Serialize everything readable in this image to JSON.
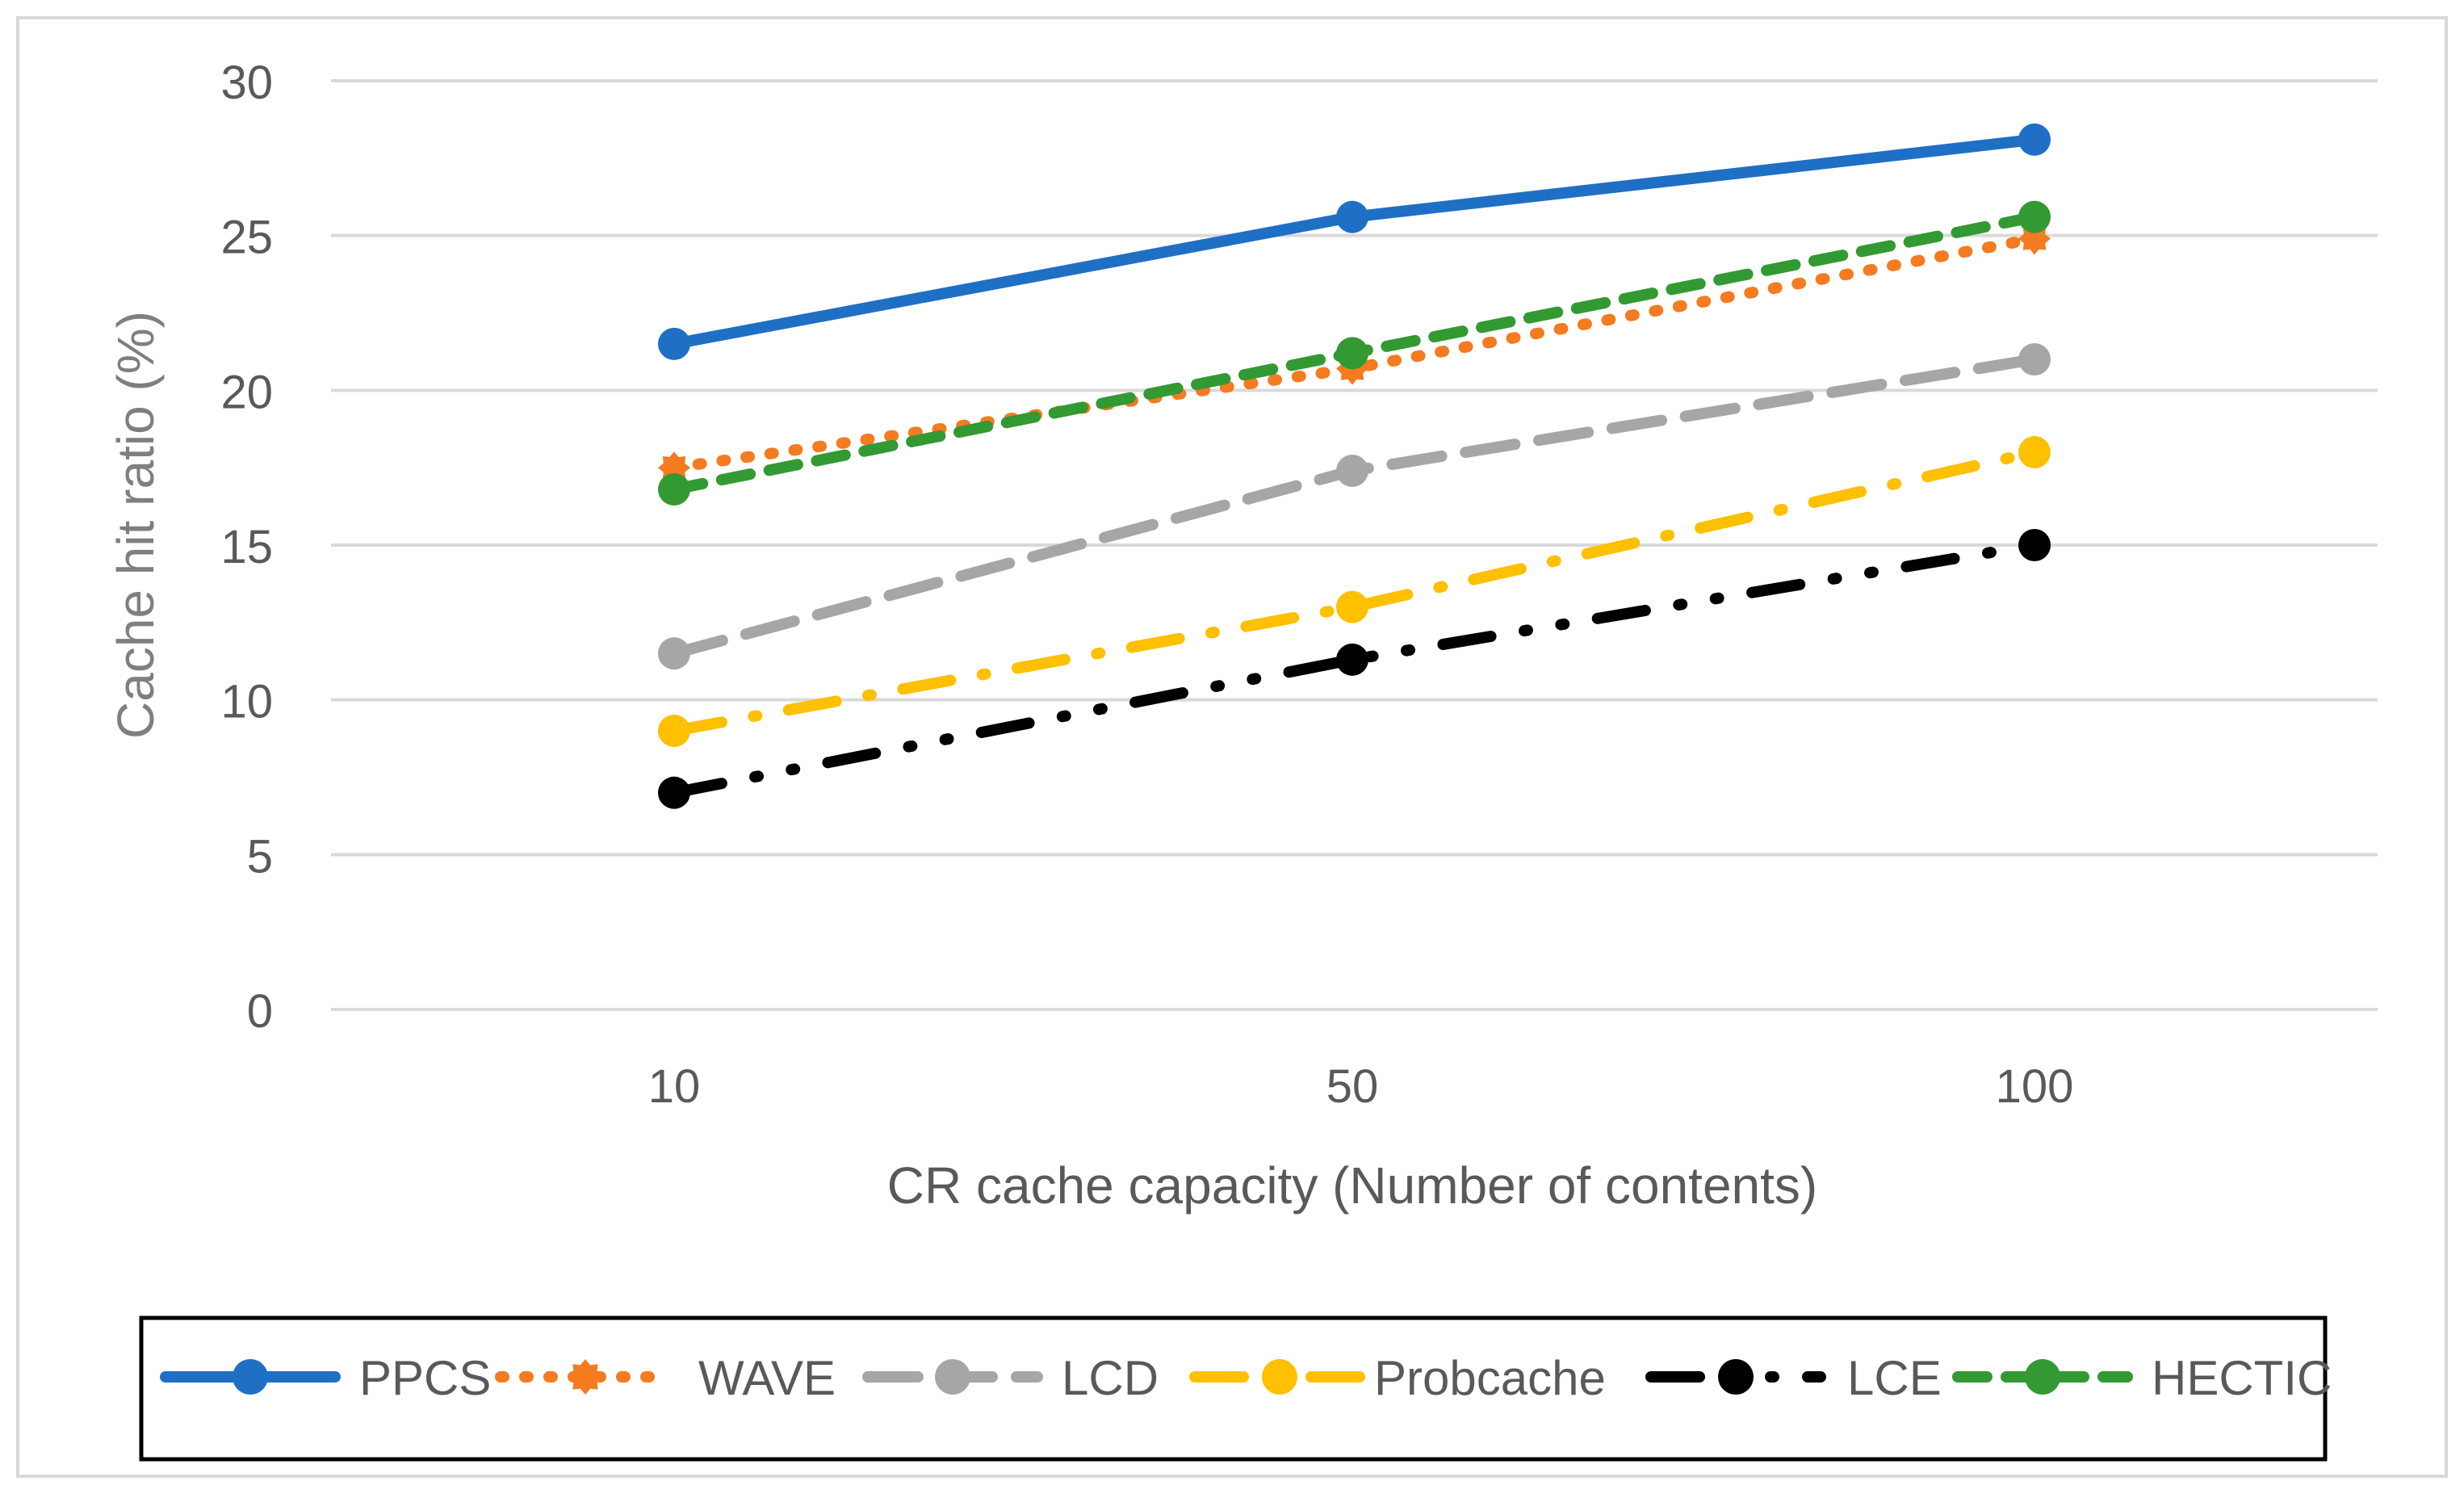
{
  "chart_data": {
    "type": "line",
    "title": "",
    "xlabel": "CR cache capacity (Number of contents)",
    "ylabel": "Cache hit ratio (%)",
    "categories": [
      "10",
      "50",
      "100"
    ],
    "ylim": [
      0,
      30
    ],
    "yticks": [
      0,
      5,
      10,
      15,
      20,
      25,
      30
    ],
    "grid": true,
    "legend_position": "bottom",
    "series": [
      {
        "name": "PPCS",
        "values": [
          21.5,
          25.6,
          28.1
        ],
        "color": "#1F6FC5",
        "style": "solid",
        "marker": "circle"
      },
      {
        "name": "WAVE",
        "values": [
          17.5,
          20.7,
          24.9
        ],
        "color": "#F47B20",
        "style": "dotted",
        "marker": "star"
      },
      {
        "name": "LCD",
        "values": [
          11.5,
          17.4,
          21.0
        ],
        "color": "#A6A6A6",
        "style": "dashed",
        "marker": "circle"
      },
      {
        "name": "Probcache",
        "values": [
          9.0,
          13.0,
          18.0
        ],
        "color": "#FFC000",
        "style": "dashdot",
        "marker": "circle"
      },
      {
        "name": "LCE",
        "values": [
          7.0,
          11.3,
          15.0
        ],
        "color": "#000000",
        "style": "dashdotdot",
        "marker": "circle"
      },
      {
        "name": "HECTIC",
        "values": [
          16.8,
          21.2,
          25.6
        ],
        "color": "#339933",
        "style": "shortdash",
        "marker": "circle"
      }
    ]
  }
}
